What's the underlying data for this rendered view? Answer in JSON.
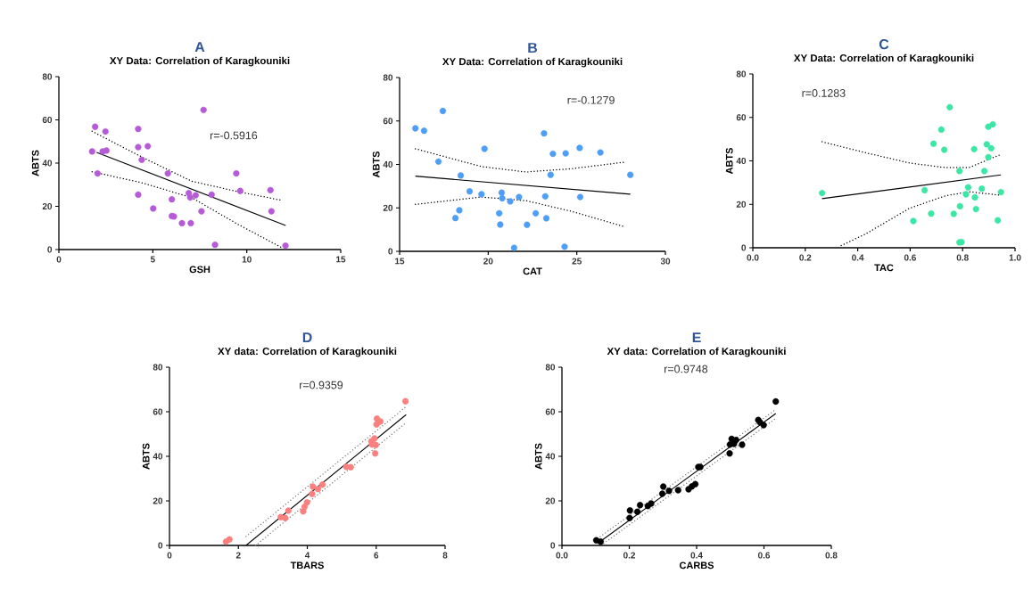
{
  "chart_data": [
    {
      "type": "scatter",
      "title": "A",
      "subtitle": "XY Data: Correlation of Karagkouniki",
      "xlabel": "GSH",
      "ylabel": "ABTS",
      "xlim": [
        0,
        15
      ],
      "ylim": [
        0,
        80
      ],
      "xticks": [
        0,
        5,
        10,
        15
      ],
      "yticks": [
        0,
        20,
        40,
        60,
        80
      ],
      "annotations": [
        "r=-0.5916"
      ],
      "marker": "circle",
      "series": [
        {
          "type": "scatter",
          "color": "#b65bd6",
          "x": [
            1.93,
            2.48,
            4.22,
            7.7,
            1.77,
            2.33,
            2.53,
            4.22,
            4.73,
            4.41,
            2.06,
            5.8,
            9.44,
            4.22,
            6.01,
            5.02,
            6.91,
            6.99,
            7.28,
            8.13,
            9.65,
            11.26,
            7.59,
            6.01,
            6.12,
            6.55,
            7.02,
            11.31,
            8.31,
            12.06
          ],
          "values": [
            56.8,
            54.6,
            55.8,
            64.6,
            45.4,
            45.4,
            45.8,
            47.4,
            47.8,
            41.5,
            35.2,
            35.2,
            35.2,
            25.4,
            23.2,
            19.0,
            26.1,
            24.1,
            25.1,
            25.4,
            27.1,
            27.5,
            17.7,
            15.5,
            15.3,
            12.2,
            12.2,
            17.7,
            2.2,
            1.8
          ]
        },
        {
          "type": "line",
          "color": "#000000",
          "marker": "none",
          "line_style": "solid",
          "x": [
            2.01,
            12.07
          ],
          "values": [
            44.9,
            11.1
          ]
        },
        {
          "type": "line",
          "color": "#000000",
          "marker": "none",
          "line_style": "dotted",
          "x": [
            1.77,
            4.46,
            7.07,
            9.52,
            11.9
          ],
          "values": [
            54.7,
            42.6,
            31.6,
            26.8,
            22.7
          ]
        },
        {
          "type": "line",
          "color": "#000000",
          "marker": "none",
          "line_style": "dotted",
          "x": [
            1.77,
            4.46,
            7.07,
            9.52,
            11.9
          ],
          "values": [
            36.0,
            30.8,
            24.0,
            11.7,
            0.7
          ]
        }
      ]
    },
    {
      "type": "scatter",
      "title": "B",
      "subtitle": "XY Data: Correlation of Karagkouniki",
      "xlabel": "CAT",
      "ylabel": "ABTS",
      "xlim": [
        15,
        30
      ],
      "ylim": [
        0,
        80
      ],
      "xticks": [
        15,
        20,
        25,
        30
      ],
      "yticks": [
        0,
        20,
        40,
        60,
        80
      ],
      "annotations": [
        "r=-0.1279"
      ],
      "marker": "circle",
      "series": [
        {
          "type": "scatter",
          "color": "#4f9ef5",
          "x": [
            15.89,
            16.38,
            17.44,
            17.19,
            19.79,
            23.15,
            23.65,
            24.37,
            25.16,
            26.33,
            18.45,
            23.52,
            28.02,
            18.95,
            19.62,
            20.76,
            20.79,
            21.24,
            21.74,
            23.22,
            25.19,
            18.37,
            18.15,
            20.62,
            22.68,
            23.28,
            20.68,
            22.19,
            21.46,
            24.31
          ],
          "values": [
            56.6,
            55.5,
            64.6,
            41.3,
            47.2,
            54.3,
            44.9,
            45.1,
            47.6,
            45.5,
            34.9,
            35.2,
            35.2,
            27.6,
            26.3,
            27.0,
            24.4,
            23.0,
            25.0,
            25.3,
            25.0,
            18.9,
            15.3,
            17.5,
            17.5,
            15.2,
            12.3,
            12.2,
            1.6,
            2.1
          ]
        },
        {
          "type": "line",
          "color": "#000000",
          "marker": "none",
          "line_style": "solid",
          "x": [
            15.89,
            28.02
          ],
          "values": [
            34.6,
            26.3
          ]
        },
        {
          "type": "line",
          "color": "#000000",
          "marker": "none",
          "line_style": "dotted",
          "x": [
            15.89,
            19.62,
            22.14,
            24.66,
            27.68
          ],
          "values": [
            47.2,
            39.0,
            36.5,
            38.0,
            41.0
          ]
        },
        {
          "type": "line",
          "color": "#000000",
          "marker": "none",
          "line_style": "dotted",
          "x": [
            15.89,
            19.62,
            22.14,
            24.66,
            27.68
          ],
          "values": [
            21.6,
            25.0,
            23.3,
            18.5,
            11.4
          ]
        }
      ]
    },
    {
      "type": "scatter",
      "title": "C",
      "subtitle": "XY Data: Correlation of Karagkouniki",
      "xlabel": "TAC",
      "ylabel": "ABTS",
      "xlim": [
        0,
        1
      ],
      "ylim": [
        0,
        80
      ],
      "xticks": [
        {
          "value": 0,
          "label": "0.0"
        },
        {
          "value": 0.2,
          "label": "0.2"
        },
        {
          "value": 0.4,
          "label": "0.4"
        },
        {
          "value": 0.6,
          "label": "0.6"
        },
        {
          "value": 0.8,
          "label": "0.8"
        },
        {
          "value": 1,
          "label": "1.0"
        }
      ],
      "yticks": [
        0,
        20,
        40,
        60,
        80
      ],
      "annotations": [
        "r=0.1283"
      ],
      "marker": "circle",
      "series": [
        {
          "type": "scatter",
          "color": "#3ee6a6",
          "x": [
            0.264,
            0.751,
            0.719,
            0.689,
            0.73,
            0.844,
            0.898,
            0.915,
            0.892,
            0.909,
            0.898,
            0.788,
            0.883,
            0.655,
            0.821,
            0.873,
            0.813,
            0.847,
            0.946,
            0.79,
            0.851,
            0.68,
            0.766,
            0.612,
            0.934,
            0.788,
            0.796
          ],
          "values": [
            25.2,
            64.7,
            54.4,
            47.9,
            45.1,
            45.4,
            55.7,
            56.8,
            47.6,
            45.8,
            41.7,
            35.3,
            35.3,
            26.5,
            27.8,
            27.2,
            24.6,
            23.2,
            25.6,
            19.1,
            17.8,
            15.7,
            15.6,
            12.3,
            12.6,
            2.5,
            2.6
          ]
        },
        {
          "type": "line",
          "color": "#000000",
          "marker": "none",
          "line_style": "solid",
          "x": [
            0.264,
            0.946
          ],
          "values": [
            22.6,
            33.5
          ]
        },
        {
          "type": "line",
          "color": "#000000",
          "marker": "none",
          "line_style": "dotted",
          "x": [
            0.264,
            0.428,
            0.598,
            0.734,
            0.824,
            0.943
          ],
          "values": [
            48.8,
            43.8,
            39.0,
            36.9,
            36.9,
            42.8
          ]
        },
        {
          "type": "line",
          "color": "#000000",
          "marker": "none",
          "line_style": "dotted",
          "x": [
            0.337,
            0.428,
            0.598,
            0.734,
            0.824,
            0.943
          ],
          "values": [
            1.0,
            6.2,
            18.2,
            23.9,
            25.8,
            24.2
          ]
        }
      ]
    },
    {
      "type": "scatter",
      "title": "D",
      "subtitle": "XY data: Correlation of Karagkouniki",
      "xlabel": "TBARS",
      "ylabel": "ABTS",
      "xlim": [
        0,
        8
      ],
      "ylim": [
        0,
        80
      ],
      "xticks": [
        0,
        2,
        4,
        6,
        8
      ],
      "yticks": [
        0,
        20,
        40,
        60,
        80
      ],
      "annotations": [
        "r=0.9359"
      ],
      "marker": "circle",
      "series": [
        {
          "type": "scatter",
          "color": "#fa8080",
          "x": [
            6.85,
            6.02,
            6.12,
            6.01,
            5.95,
            5.86,
            5.99,
            5.88,
            5.97,
            5.13,
            5.26,
            4.44,
            4.31,
            4.16,
            4.14,
            3.99,
            3.92,
            3.88,
            3.45,
            3.23,
            3.36,
            1.74,
            1.64
          ],
          "values": [
            64.7,
            56.9,
            55.6,
            54.3,
            48.0,
            46.7,
            45.1,
            45.3,
            41.3,
            35.3,
            35.1,
            27.3,
            25.3,
            26.4,
            23.1,
            19.3,
            17.3,
            15.3,
            15.6,
            12.7,
            12.3,
            2.7,
            1.7
          ]
        },
        {
          "type": "line",
          "color": "#000000",
          "marker": "none",
          "line_style": "solid",
          "x": [
            2.22,
            6.87
          ],
          "values": [
            0,
            58.7
          ]
        },
        {
          "type": "line",
          "color": "#808080",
          "marker": "none",
          "line_style": "dotted",
          "x": [
            2.22,
            6.87
          ],
          "values": [
            4.0,
            62.3
          ]
        },
        {
          "type": "line",
          "color": "#808080",
          "marker": "none",
          "line_style": "dotted",
          "x": [
            2.5,
            6.87
          ],
          "values": [
            0,
            55.1
          ]
        }
      ]
    },
    {
      "type": "scatter",
      "title": "E",
      "subtitle": "XY data: Correlation of Karagkouniki",
      "xlabel": "CARBS",
      "ylabel": "ABTS",
      "xlim": [
        0,
        0.8
      ],
      "ylim": [
        0,
        80
      ],
      "xticks": [
        {
          "value": 0,
          "label": "0.0"
        },
        {
          "value": 0.2,
          "label": "0.2"
        },
        {
          "value": 0.4,
          "label": "0.4"
        },
        {
          "value": 0.6,
          "label": "0.6"
        },
        {
          "value": 0.8,
          "label": "0.8"
        }
      ],
      "yticks": [
        0,
        20,
        40,
        60,
        80
      ],
      "annotations": [
        "r=0.9748"
      ],
      "marker": "circle",
      "series": [
        {
          "type": "scatter",
          "color": "#000000",
          "x": [
            0.635,
            0.583,
            0.588,
            0.599,
            0.504,
            0.517,
            0.499,
            0.511,
            0.535,
            0.498,
            0.405,
            0.411,
            0.396,
            0.386,
            0.376,
            0.301,
            0.298,
            0.318,
            0.345,
            0.265,
            0.255,
            0.232,
            0.224,
            0.202,
            0.201,
            0.102,
            0.115
          ],
          "values": [
            64.6,
            56.3,
            55.3,
            54.0,
            47.8,
            47.3,
            45.3,
            45.6,
            45.2,
            41.3,
            35.2,
            35.2,
            27.5,
            26.5,
            25.2,
            26.4,
            23.2,
            24.5,
            24.8,
            18.8,
            17.7,
            18.1,
            15.1,
            15.7,
            12.3,
            2.3,
            1.7
          ]
        },
        {
          "type": "line",
          "color": "#000000",
          "marker": "none",
          "line_style": "solid",
          "x": [
            0.106,
            0.635
          ],
          "values": [
            0.9,
            59.2
          ]
        },
        {
          "type": "line",
          "color": "#808080",
          "marker": "none",
          "line_style": "dotted",
          "x": [
            0.106,
            0.635
          ],
          "values": [
            3.1,
            61.0
          ]
        },
        {
          "type": "line",
          "color": "#808080",
          "marker": "none",
          "line_style": "dotted",
          "x": [
            0.124,
            0.635
          ],
          "values": [
            0.9,
            57.0
          ]
        }
      ]
    }
  ]
}
